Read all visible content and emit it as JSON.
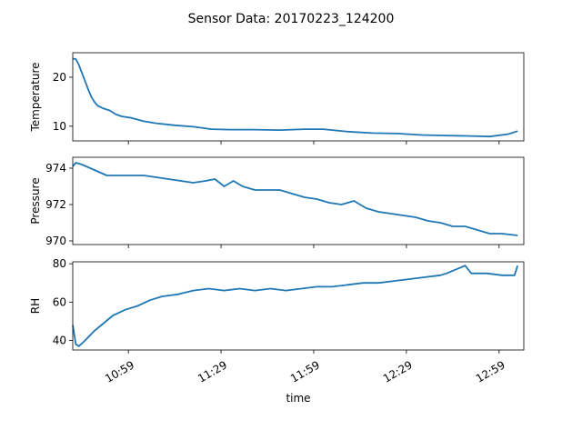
{
  "title": "Sensor Data: 20170223_124200",
  "xlabel": "time",
  "chart_data": [
    {
      "type": "line",
      "ylabel": "Temperature",
      "x_ticks": [
        "10:59",
        "11:29",
        "11:59",
        "12:29",
        "12:59"
      ],
      "x_range": [
        "10:41",
        "13:07"
      ],
      "ylim": [
        7,
        25
      ],
      "y_ticks": [
        10,
        20
      ],
      "color": "#1f77b4",
      "series": [
        {
          "x": [
            "10:41",
            "10:42",
            "10:43",
            "10:44",
            "10:45",
            "10:46",
            "10:47",
            "10:48",
            "10:49",
            "10:51",
            "10:53",
            "10:55",
            "10:57",
            "11:00",
            "11:04",
            "11:08",
            "11:14",
            "11:20",
            "11:26",
            "11:32",
            "11:40",
            "11:48",
            "11:56",
            "12:02",
            "12:10",
            "12:18",
            "12:26",
            "12:34",
            "12:42",
            "12:50",
            "12:56",
            "13:02",
            "13:05"
          ],
          "y": [
            23.8,
            23.7,
            22.5,
            20.8,
            19.2,
            17.5,
            16.0,
            15.0,
            14.2,
            13.6,
            13.2,
            12.4,
            12.0,
            11.7,
            11.0,
            10.6,
            10.2,
            9.9,
            9.4,
            9.3,
            9.3,
            9.2,
            9.4,
            9.4,
            8.9,
            8.6,
            8.5,
            8.2,
            8.1,
            8.0,
            7.9,
            8.4,
            9.0
          ]
        }
      ]
    },
    {
      "type": "line",
      "ylabel": "Pressure",
      "x_ticks": [
        "10:59",
        "11:29",
        "11:59",
        "12:29",
        "12:59"
      ],
      "x_range": [
        "10:41",
        "13:07"
      ],
      "ylim": [
        969.8,
        974.6
      ],
      "y_ticks": [
        970,
        972,
        974
      ],
      "color": "#1f77b4",
      "series": [
        {
          "x": [
            "10:41",
            "10:42",
            "10:44",
            "10:48",
            "10:52",
            "10:56",
            "11:00",
            "11:04",
            "11:08",
            "11:12",
            "11:16",
            "11:20",
            "11:24",
            "11:27",
            "11:30",
            "11:33",
            "11:36",
            "11:40",
            "11:44",
            "11:48",
            "11:52",
            "11:56",
            "12:00",
            "12:04",
            "12:08",
            "12:12",
            "12:16",
            "12:20",
            "12:24",
            "12:28",
            "12:32",
            "12:36",
            "12:40",
            "12:44",
            "12:48",
            "12:52",
            "12:56",
            "13:00",
            "13:05"
          ],
          "y": [
            974.1,
            974.3,
            974.2,
            973.9,
            973.6,
            973.6,
            973.6,
            973.6,
            973.5,
            973.4,
            973.3,
            973.2,
            973.3,
            973.4,
            973.0,
            973.3,
            973.0,
            972.8,
            972.8,
            972.8,
            972.6,
            972.4,
            972.3,
            972.1,
            972.0,
            972.2,
            971.8,
            971.6,
            971.5,
            971.4,
            971.3,
            971.1,
            971.0,
            970.8,
            970.8,
            970.6,
            970.4,
            970.4,
            970.3
          ]
        }
      ]
    },
    {
      "type": "line",
      "ylabel": "RH",
      "x_ticks": [
        "10:59",
        "11:29",
        "11:59",
        "12:29",
        "12:59"
      ],
      "x_range": [
        "10:41",
        "13:07"
      ],
      "ylim": [
        35,
        81
      ],
      "y_ticks": [
        40,
        60,
        80
      ],
      "color": "#1f77b4",
      "series": [
        {
          "x": [
            "10:41",
            "10:42",
            "10:43",
            "10:45",
            "10:48",
            "10:51",
            "10:54",
            "10:58",
            "11:02",
            "11:06",
            "11:10",
            "11:15",
            "11:20",
            "11:25",
            "11:30",
            "11:35",
            "11:40",
            "11:45",
            "11:50",
            "11:55",
            "12:00",
            "12:05",
            "12:10",
            "12:15",
            "12:20",
            "12:25",
            "12:30",
            "12:35",
            "12:40",
            "12:42",
            "12:45",
            "12:48",
            "12:50",
            "12:55",
            "13:00",
            "13:04",
            "13:05"
          ],
          "y": [
            48,
            38,
            37,
            40,
            45,
            49,
            53,
            56,
            58,
            61,
            63,
            64,
            66,
            67,
            66,
            67,
            66,
            67,
            66,
            67,
            68,
            68,
            69,
            70,
            70,
            71,
            72,
            73,
            74,
            75,
            77,
            79,
            75,
            75,
            74,
            74,
            79
          ]
        }
      ]
    }
  ]
}
